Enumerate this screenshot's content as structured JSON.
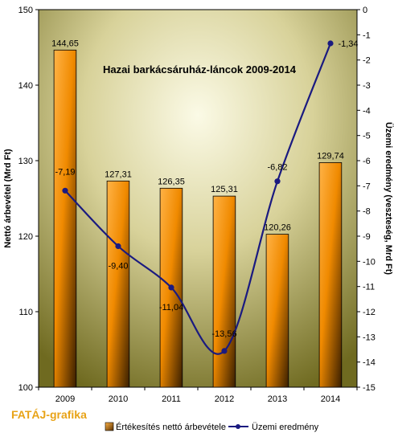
{
  "credit": "FATÁJ-grafika",
  "chart_data": {
    "type": "bar",
    "title": "Hazai barkácsáruház-láncok 2009-2014",
    "categories": [
      "2009",
      "2010",
      "2011",
      "2012",
      "2013",
      "2014"
    ],
    "xlabel": "",
    "ylabel": "Nettó árbevétel (Mrd Ft)",
    "ylabel_right": "Üzemi eredmény (veszteség, Mrd Ft)",
    "ylim": [
      100,
      150
    ],
    "y_ticks": [
      100,
      110,
      120,
      130,
      140,
      150
    ],
    "ylim_right": [
      -15,
      0
    ],
    "y_ticks_right": [
      -15,
      -14,
      -13,
      -12,
      -11,
      -10,
      -9,
      -8,
      -7,
      -6,
      -5,
      -4,
      -3,
      -2,
      -1,
      0
    ],
    "grid": false,
    "legend_position": "bottom",
    "series": [
      {
        "name": "Értékesítés nettó árbevétele",
        "type": "bar",
        "axis": "left",
        "values": [
          144.65,
          127.31,
          126.35,
          125.31,
          120.26,
          129.74
        ],
        "labels": [
          "144,65",
          "127,31",
          "126,35",
          "125,31",
          "120,26",
          "129,74"
        ],
        "color": "#FF9900"
      },
      {
        "name": "Üzemi eredmény",
        "type": "line",
        "axis": "right",
        "values": [
          -7.19,
          -9.4,
          -11.04,
          -13.56,
          -6.82,
          -1.34
        ],
        "labels": [
          "-7,19",
          "-9,40",
          "-11,04",
          "-13,56",
          "-6,82",
          "-1,34"
        ],
        "color": "#1A1A80"
      }
    ]
  }
}
